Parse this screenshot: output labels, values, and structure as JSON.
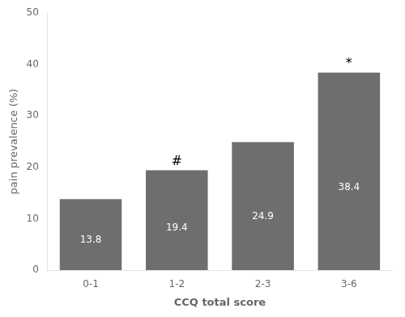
{
  "chart_data": {
    "type": "bar",
    "categories": [
      "0-1",
      "1-2",
      "2-3",
      "3-6"
    ],
    "values": [
      13.8,
      19.4,
      24.9,
      38.4
    ],
    "color": "#6e6e6e",
    "data_labels": true,
    "annotations": [
      {
        "category": "1-2",
        "text": "#"
      },
      {
        "category": "3-6",
        "text": "*"
      }
    ],
    "xlabel": "CCQ total score",
    "ylabel": "pain prevalence (%)",
    "ylim": [
      0,
      50
    ],
    "yticks": [
      0,
      10,
      20,
      30,
      40,
      50
    ],
    "grid": false
  }
}
